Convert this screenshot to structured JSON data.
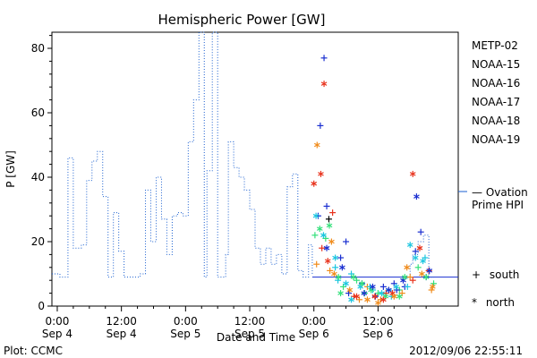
{
  "chart_data": {
    "type": "scatter",
    "title": "Hemispheric Power [GW]",
    "ylabel": "P [GW]",
    "xlabel": "Date and Time",
    "ylim": [
      0,
      85
    ],
    "xlim": [
      "2012-09-04 00:00",
      "2012-09-07 02:30"
    ],
    "yticks": [
      0,
      20,
      40,
      60,
      80
    ],
    "xticks": [
      {
        "time": "0:00",
        "date": "Sep 4",
        "hour": 0
      },
      {
        "time": "12:00",
        "date": "Sep 4",
        "hour": 12
      },
      {
        "time": "0:00",
        "date": "Sep 5",
        "hour": 24
      },
      {
        "time": "12:00",
        "date": "Sep 5",
        "hour": 36
      },
      {
        "time": "0:00",
        "date": "Sep 6",
        "hour": 48
      },
      {
        "time": "12:00",
        "date": "Sep 6",
        "hour": 60
      }
    ],
    "grid": false,
    "legend_position": "right",
    "satellites": [
      {
        "name": "METP-02",
        "color": "#000000"
      },
      {
        "name": "NOAA-15",
        "color": "#1a2fd0"
      },
      {
        "name": "NOAA-16",
        "color": "#1cc6e0"
      },
      {
        "name": "NOAA-17",
        "color": "#33e07a"
      },
      {
        "name": "NOAA-18",
        "color": "#f08c1c"
      },
      {
        "name": "NOAA-19",
        "color": "#e8321c"
      }
    ],
    "ovation": {
      "label_line1": "— Ovation",
      "label_line2": "Prime HPI",
      "color": "#1a5fd0",
      "steps": [
        [
          -1,
          10
        ],
        [
          0.5,
          9
        ],
        [
          2,
          46
        ],
        [
          3,
          18
        ],
        [
          4.5,
          19
        ],
        [
          5.5,
          39
        ],
        [
          6.5,
          45
        ],
        [
          7.5,
          48
        ],
        [
          8.5,
          34
        ],
        [
          9.5,
          9
        ],
        [
          10.5,
          29
        ],
        [
          11.5,
          17
        ],
        [
          12.5,
          9
        ],
        [
          15.5,
          10
        ],
        [
          16.5,
          36
        ],
        [
          17.5,
          20
        ],
        [
          18.5,
          40
        ],
        [
          19.5,
          27
        ],
        [
          20.5,
          16
        ],
        [
          21.5,
          28
        ],
        [
          22.5,
          29
        ],
        [
          23.5,
          28
        ],
        [
          24.5,
          51
        ],
        [
          25.5,
          64
        ],
        [
          26.5,
          85
        ],
        [
          27.5,
          9
        ],
        [
          28,
          42
        ],
        [
          29,
          85
        ],
        [
          30,
          9
        ],
        [
          31.5,
          16
        ],
        [
          32,
          51
        ],
        [
          33,
          43
        ],
        [
          34,
          40
        ],
        [
          35,
          36
        ],
        [
          36,
          30
        ],
        [
          37,
          18
        ],
        [
          38,
          13
        ],
        [
          39,
          18
        ],
        [
          40,
          13
        ],
        [
          41,
          16
        ],
        [
          42,
          10
        ],
        [
          43,
          37
        ],
        [
          44,
          41
        ],
        [
          45,
          11
        ],
        [
          46,
          9
        ],
        [
          47,
          19
        ],
        [
          47.7,
          10
        ]
      ],
      "segment": {
        "from": 47.7,
        "to": 75,
        "value": 9
      },
      "trailing_steps": [
        [
          65,
          9
        ],
        [
          66,
          13
        ],
        [
          66.5,
          16
        ],
        [
          67.5,
          20
        ],
        [
          68.5,
          22
        ],
        [
          69.5,
          9
        ]
      ]
    },
    "south": [
      [
        48.2,
        22,
        3
      ],
      [
        48.8,
        28,
        1
      ],
      [
        49.2,
        56,
        1
      ],
      [
        49.9,
        77,
        1
      ],
      [
        50.4,
        31,
        1
      ],
      [
        50.8,
        27,
        0
      ],
      [
        51.5,
        29,
        5
      ],
      [
        52,
        12,
        2
      ],
      [
        53,
        15,
        1
      ],
      [
        54,
        20,
        1
      ],
      [
        55,
        10,
        2
      ],
      [
        56,
        8,
        3
      ],
      [
        57,
        7,
        1
      ],
      [
        58,
        6,
        4
      ],
      [
        59,
        5,
        2
      ],
      [
        60,
        4,
        3
      ],
      [
        61,
        6,
        1
      ],
      [
        62,
        5,
        2
      ],
      [
        63,
        7,
        1
      ],
      [
        64,
        5,
        3
      ],
      [
        65,
        6,
        1
      ],
      [
        66,
        9,
        4
      ],
      [
        67,
        17,
        1
      ],
      [
        68,
        23,
        1
      ],
      [
        68.8,
        15,
        2
      ],
      [
        69.5,
        11,
        5
      ],
      [
        70.4,
        7,
        3
      ],
      [
        48.5,
        13,
        4
      ],
      [
        49.5,
        18,
        5
      ],
      [
        50.2,
        21,
        3
      ],
      [
        51,
        11,
        4
      ],
      [
        52.5,
        8,
        2
      ],
      [
        53.5,
        6,
        3
      ],
      [
        54.5,
        4,
        1
      ],
      [
        55.5,
        3,
        5
      ],
      [
        56.5,
        2,
        4
      ],
      [
        57.5,
        4,
        3
      ],
      [
        58.5,
        6,
        2
      ],
      [
        59.5,
        3,
        1
      ],
      [
        60.5,
        2,
        4
      ],
      [
        61.5,
        4,
        5
      ],
      [
        62.5,
        3,
        2
      ],
      [
        63.5,
        5,
        1
      ],
      [
        64.5,
        4,
        4
      ],
      [
        65.5,
        6,
        2
      ],
      [
        66.5,
        8,
        5
      ],
      [
        67.5,
        12,
        3
      ],
      [
        69,
        9,
        1
      ],
      [
        70,
        5,
        4
      ]
    ],
    "north": [
      [
        48,
        38,
        5
      ],
      [
        48.6,
        50,
        4
      ],
      [
        49.3,
        41,
        5
      ],
      [
        49.9,
        69,
        5
      ],
      [
        50.4,
        18,
        1
      ],
      [
        50.9,
        25,
        3
      ],
      [
        51.3,
        20,
        4
      ],
      [
        52,
        15,
        2
      ],
      [
        52.6,
        9,
        3
      ],
      [
        53.3,
        12,
        1
      ],
      [
        54,
        7,
        2
      ],
      [
        54.7,
        5,
        4
      ],
      [
        55.4,
        9,
        3
      ],
      [
        56,
        3,
        5
      ],
      [
        56.7,
        6,
        2
      ],
      [
        57.4,
        4,
        1
      ],
      [
        58,
        2,
        4
      ],
      [
        58.7,
        5,
        3
      ],
      [
        59.4,
        3,
        5
      ],
      [
        60,
        1,
        4
      ],
      [
        60.7,
        4,
        2
      ],
      [
        61.4,
        3,
        3
      ],
      [
        62,
        5,
        1
      ],
      [
        62.7,
        4,
        5
      ],
      [
        63.4,
        6,
        2
      ],
      [
        64,
        3,
        3
      ],
      [
        64.7,
        8,
        1
      ],
      [
        65.4,
        12,
        4
      ],
      [
        66,
        19,
        2
      ],
      [
        66.5,
        41,
        5
      ],
      [
        67.2,
        34,
        1
      ],
      [
        67.8,
        18,
        5
      ],
      [
        68.4,
        14,
        2
      ],
      [
        69,
        9,
        3
      ],
      [
        69.6,
        11,
        1
      ],
      [
        70.2,
        6,
        4
      ],
      [
        48.4,
        28,
        2
      ],
      [
        49.1,
        24,
        3
      ],
      [
        49.8,
        22,
        2
      ],
      [
        50.6,
        14,
        5
      ],
      [
        51.8,
        10,
        4
      ],
      [
        53,
        4,
        3
      ],
      [
        55,
        2,
        2
      ],
      [
        57,
        7,
        3
      ],
      [
        59,
        6,
        1
      ],
      [
        61,
        2,
        5
      ],
      [
        63,
        3,
        4
      ],
      [
        65,
        9,
        3
      ],
      [
        67,
        15,
        2
      ],
      [
        68.2,
        10,
        4
      ]
    ],
    "markers_legend": [
      {
        "symbol": "+",
        "label": "south"
      },
      {
        "symbol": "*",
        "label": "north"
      }
    ],
    "footer": {
      "left": "Plot: CCMC",
      "right": "2012/09/06 22:55:11"
    }
  }
}
